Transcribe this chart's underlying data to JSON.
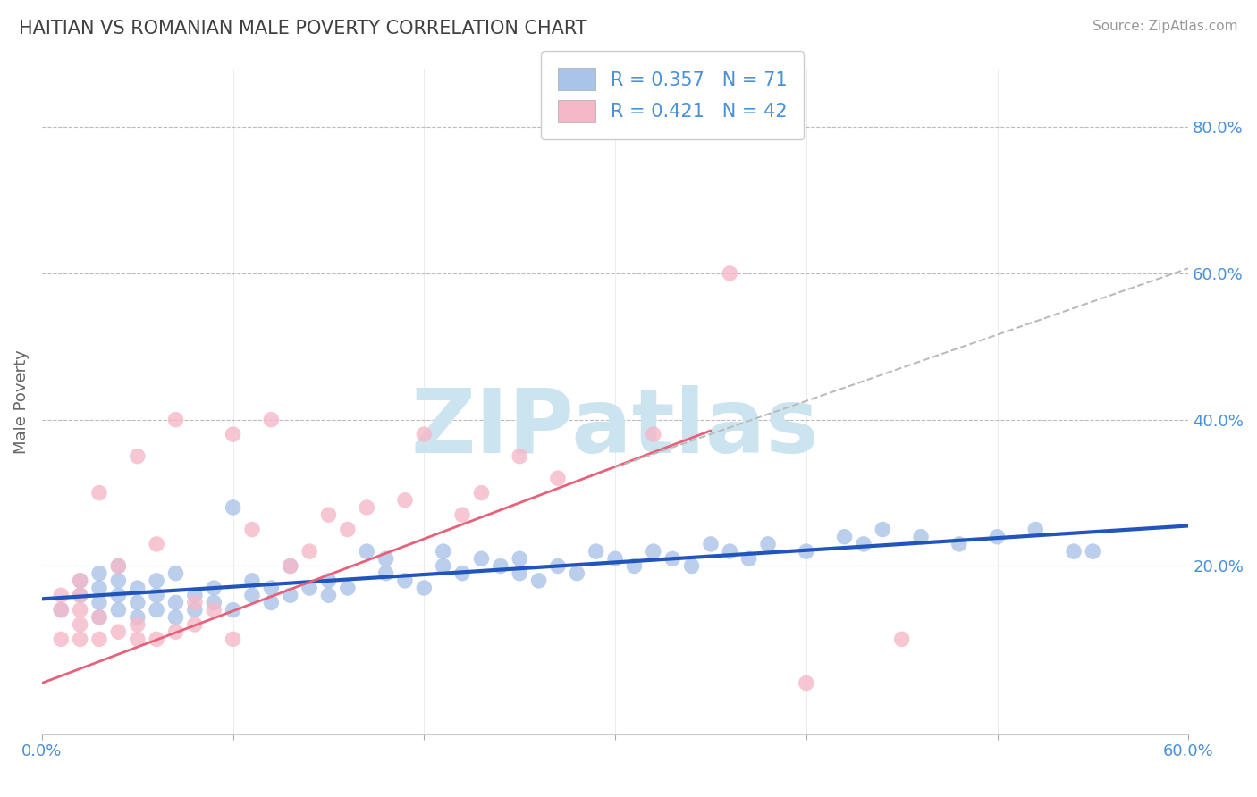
{
  "title": "HAITIAN VS ROMANIAN MALE POVERTY CORRELATION CHART",
  "source": "Source: ZipAtlas.com",
  "ylabel": "Male Poverty",
  "xlim": [
    0.0,
    0.6
  ],
  "ylim": [
    -0.03,
    0.88
  ],
  "ytick_values": [
    0.2,
    0.4,
    0.6,
    0.8
  ],
  "haitian_color": "#aac4e8",
  "romanian_color": "#f5b8c8",
  "haitian_line_color": "#2255bb",
  "romanian_line_color": "#e8607a",
  "romanian_line_color2": "#bbbbbb",
  "background_color": "#ffffff",
  "grid_color": "#bbbbbb",
  "watermark": "ZIPatlas",
  "watermark_color": "#cce4f0",
  "title_color": "#404040",
  "axis_label_color": "#666666",
  "tick_label_color": "#4a90d9",
  "haitian_R": 0.357,
  "haitian_N": 71,
  "romanian_R": 0.421,
  "romanian_N": 42,
  "haitian_line": [
    0.0,
    0.155,
    0.6,
    0.255
  ],
  "romanian_solid_line": [
    0.0,
    0.04,
    0.35,
    0.385
  ],
  "romanian_dashed_line": [
    0.3,
    0.335,
    0.62,
    0.625
  ],
  "haitian_x": [
    0.01,
    0.02,
    0.02,
    0.03,
    0.03,
    0.03,
    0.03,
    0.04,
    0.04,
    0.04,
    0.04,
    0.05,
    0.05,
    0.05,
    0.06,
    0.06,
    0.06,
    0.07,
    0.07,
    0.07,
    0.08,
    0.08,
    0.09,
    0.09,
    0.1,
    0.1,
    0.11,
    0.11,
    0.12,
    0.12,
    0.13,
    0.13,
    0.14,
    0.15,
    0.15,
    0.16,
    0.17,
    0.18,
    0.18,
    0.19,
    0.2,
    0.21,
    0.21,
    0.22,
    0.23,
    0.24,
    0.25,
    0.25,
    0.26,
    0.27,
    0.28,
    0.29,
    0.3,
    0.31,
    0.32,
    0.33,
    0.34,
    0.35,
    0.36,
    0.37,
    0.38,
    0.4,
    0.42,
    0.43,
    0.44,
    0.46,
    0.48,
    0.5,
    0.52,
    0.54,
    0.55
  ],
  "haitian_y": [
    0.14,
    0.16,
    0.18,
    0.13,
    0.15,
    0.17,
    0.19,
    0.14,
    0.16,
    0.18,
    0.2,
    0.13,
    0.15,
    0.17,
    0.14,
    0.16,
    0.18,
    0.13,
    0.15,
    0.19,
    0.14,
    0.16,
    0.15,
    0.17,
    0.14,
    0.28,
    0.16,
    0.18,
    0.15,
    0.17,
    0.2,
    0.16,
    0.17,
    0.18,
    0.16,
    0.17,
    0.22,
    0.19,
    0.21,
    0.18,
    0.17,
    0.2,
    0.22,
    0.19,
    0.21,
    0.2,
    0.19,
    0.21,
    0.18,
    0.2,
    0.19,
    0.22,
    0.21,
    0.2,
    0.22,
    0.21,
    0.2,
    0.23,
    0.22,
    0.21,
    0.23,
    0.22,
    0.24,
    0.23,
    0.25,
    0.24,
    0.23,
    0.24,
    0.25,
    0.22,
    0.22
  ],
  "romanian_x": [
    0.01,
    0.01,
    0.01,
    0.02,
    0.02,
    0.02,
    0.02,
    0.02,
    0.03,
    0.03,
    0.03,
    0.04,
    0.04,
    0.05,
    0.05,
    0.05,
    0.06,
    0.06,
    0.07,
    0.07,
    0.08,
    0.08,
    0.09,
    0.1,
    0.1,
    0.11,
    0.12,
    0.13,
    0.14,
    0.15,
    0.16,
    0.17,
    0.19,
    0.2,
    0.22,
    0.23,
    0.25,
    0.27,
    0.32,
    0.36,
    0.4,
    0.45
  ],
  "romanian_y": [
    0.1,
    0.14,
    0.16,
    0.1,
    0.12,
    0.14,
    0.16,
    0.18,
    0.1,
    0.13,
    0.3,
    0.11,
    0.2,
    0.1,
    0.12,
    0.35,
    0.1,
    0.23,
    0.11,
    0.4,
    0.12,
    0.15,
    0.14,
    0.1,
    0.38,
    0.25,
    0.4,
    0.2,
    0.22,
    0.27,
    0.25,
    0.28,
    0.29,
    0.38,
    0.27,
    0.3,
    0.35,
    0.32,
    0.38,
    0.6,
    0.04,
    0.1
  ]
}
